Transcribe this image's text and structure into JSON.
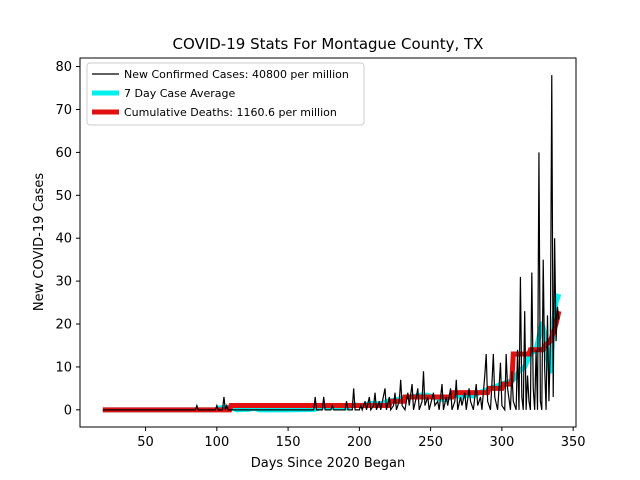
{
  "chart_data": {
    "type": "line",
    "title": "COVID-19 Stats For Montague County, TX",
    "xlabel": "Days Since 2020 Began",
    "ylabel": "New COVID-19 Cases",
    "xlim": [
      4,
      352
    ],
    "ylim": [
      -4,
      82
    ],
    "x_ticks": [
      50,
      100,
      150,
      200,
      250,
      300,
      350
    ],
    "y_ticks": [
      0,
      10,
      20,
      30,
      40,
      50,
      60,
      70,
      80
    ],
    "grid": false,
    "legend_position": "top-left",
    "colors": {
      "new_cases": "#000000",
      "avg": "#00f0f0",
      "deaths": "#e31010"
    },
    "series": [
      {
        "name": "New Confirmed Cases: 40800 per million",
        "style": "line",
        "points": [
          [
            20,
            0
          ],
          [
            85,
            0
          ],
          [
            86,
            1
          ],
          [
            87,
            0
          ],
          [
            99,
            0
          ],
          [
            100,
            1
          ],
          [
            101,
            0
          ],
          [
            104,
            0
          ],
          [
            105,
            3
          ],
          [
            106,
            0
          ],
          [
            107,
            1
          ],
          [
            108,
            0
          ],
          [
            160,
            0
          ],
          [
            168,
            0
          ],
          [
            169,
            3
          ],
          [
            170,
            0
          ],
          [
            174,
            0
          ],
          [
            175,
            3
          ],
          [
            176,
            0
          ],
          [
            180,
            0
          ],
          [
            181,
            1
          ],
          [
            182,
            0
          ],
          [
            190,
            0
          ],
          [
            191,
            2
          ],
          [
            192,
            0
          ],
          [
            195,
            0
          ],
          [
            196,
            5
          ],
          [
            197,
            0
          ],
          [
            200,
            0
          ],
          [
            201,
            1
          ],
          [
            202,
            0
          ],
          [
            204,
            2
          ],
          [
            205,
            0
          ],
          [
            207,
            3
          ],
          [
            208,
            0
          ],
          [
            210,
            1
          ],
          [
            211,
            4
          ],
          [
            212,
            0
          ],
          [
            214,
            2
          ],
          [
            215,
            0
          ],
          [
            218,
            5
          ],
          [
            219,
            0
          ],
          [
            221,
            3
          ],
          [
            222,
            0
          ],
          [
            224,
            1
          ],
          [
            225,
            4
          ],
          [
            226,
            0
          ],
          [
            228,
            2
          ],
          [
            229,
            7
          ],
          [
            230,
            1
          ],
          [
            232,
            0
          ],
          [
            234,
            4
          ],
          [
            235,
            1
          ],
          [
            237,
            6
          ],
          [
            238,
            0
          ],
          [
            240,
            3
          ],
          [
            241,
            5
          ],
          [
            242,
            0
          ],
          [
            244,
            2
          ],
          [
            245,
            9
          ],
          [
            246,
            1
          ],
          [
            248,
            3
          ],
          [
            249,
            0
          ],
          [
            252,
            4
          ],
          [
            253,
            1
          ],
          [
            255,
            2
          ],
          [
            256,
            0
          ],
          [
            258,
            6
          ],
          [
            259,
            0
          ],
          [
            261,
            3
          ],
          [
            262,
            1
          ],
          [
            264,
            5
          ],
          [
            265,
            0
          ],
          [
            267,
            2
          ],
          [
            268,
            7
          ],
          [
            269,
            0
          ],
          [
            271,
            3
          ],
          [
            272,
            1
          ],
          [
            274,
            4
          ],
          [
            275,
            0
          ],
          [
            277,
            5
          ],
          [
            278,
            2
          ],
          [
            280,
            0
          ],
          [
            282,
            6
          ],
          [
            283,
            1
          ],
          [
            285,
            3
          ],
          [
            286,
            0
          ],
          [
            288,
            8
          ],
          [
            289,
            13
          ],
          [
            290,
            2
          ],
          [
            292,
            0
          ],
          [
            293,
            6
          ],
          [
            294,
            13
          ],
          [
            295,
            3
          ],
          [
            297,
            0
          ],
          [
            298,
            5
          ],
          [
            299,
            11
          ],
          [
            300,
            1
          ],
          [
            302,
            0
          ],
          [
            303,
            13
          ],
          [
            304,
            5
          ],
          [
            306,
            0
          ],
          [
            307,
            9
          ],
          [
            308,
            2
          ],
          [
            310,
            0
          ],
          [
            311,
            14
          ],
          [
            312,
            0
          ],
          [
            313,
            31
          ],
          [
            314,
            3
          ],
          [
            315,
            0
          ],
          [
            316,
            23
          ],
          [
            317,
            0
          ],
          [
            318,
            8
          ],
          [
            319,
            2
          ],
          [
            320,
            0
          ],
          [
            321,
            32
          ],
          [
            322,
            5
          ],
          [
            323,
            0
          ],
          [
            324,
            14
          ],
          [
            325,
            0
          ],
          [
            326,
            60
          ],
          [
            327,
            2
          ],
          [
            328,
            0
          ],
          [
            329,
            35
          ],
          [
            330,
            10
          ],
          [
            331,
            0
          ],
          [
            332,
            22
          ],
          [
            333,
            2
          ],
          [
            334,
            15
          ],
          [
            335,
            78
          ],
          [
            336,
            3
          ],
          [
            337,
            40
          ],
          [
            338,
            16
          ],
          [
            339,
            24
          ],
          [
            340,
            21
          ]
        ]
      },
      {
        "name": "7 Day Case Average",
        "style": "thick-line",
        "points": [
          [
            20,
            0
          ],
          [
            100,
            0
          ],
          [
            101,
            0.4
          ],
          [
            104,
            0.5
          ],
          [
            110,
            0.6
          ],
          [
            114,
            0
          ],
          [
            118,
            0.1
          ],
          [
            122,
            0.1
          ],
          [
            126,
            0.4
          ],
          [
            130,
            0
          ],
          [
            150,
            0
          ],
          [
            168,
            0.1
          ],
          [
            172,
            0.4
          ],
          [
            176,
            0.8
          ],
          [
            180,
            0.5
          ],
          [
            186,
            0.6
          ],
          [
            190,
            0.4
          ],
          [
            196,
            1.2
          ],
          [
            200,
            1
          ],
          [
            204,
            1.1
          ],
          [
            208,
            1.5
          ],
          [
            212,
            1.4
          ],
          [
            216,
            1.5
          ],
          [
            220,
            2
          ],
          [
            224,
            2.2
          ],
          [
            228,
            2.5
          ],
          [
            232,
            3
          ],
          [
            236,
            3
          ],
          [
            240,
            3.2
          ],
          [
            244,
            3.5
          ],
          [
            248,
            3.4
          ],
          [
            252,
            3
          ],
          [
            256,
            2.6
          ],
          [
            260,
            2.3
          ],
          [
            264,
            3
          ],
          [
            268,
            3.4
          ],
          [
            272,
            3
          ],
          [
            276,
            3.5
          ],
          [
            280,
            3.2
          ],
          [
            284,
            4
          ],
          [
            288,
            4.5
          ],
          [
            292,
            5
          ],
          [
            296,
            5.5
          ],
          [
            300,
            6
          ],
          [
            304,
            6.5
          ],
          [
            308,
            7
          ],
          [
            312,
            9
          ],
          [
            316,
            10
          ],
          [
            320,
            13
          ],
          [
            324,
            14
          ],
          [
            328,
            20
          ],
          [
            330,
            18
          ],
          [
            332,
            12
          ],
          [
            334,
            9
          ],
          [
            336,
            20
          ],
          [
            338,
            25
          ],
          [
            340,
            27
          ]
        ]
      },
      {
        "name": "Cumulative Deaths: 1160.6 per million",
        "style": "step-line",
        "points": [
          [
            20,
            0
          ],
          [
            109,
            0
          ],
          [
            110,
            1
          ],
          [
            221,
            1
          ],
          [
            222,
            2
          ],
          [
            231,
            2
          ],
          [
            232,
            3
          ],
          [
            265,
            3
          ],
          [
            266,
            4
          ],
          [
            290,
            4
          ],
          [
            291,
            5
          ],
          [
            300,
            5
          ],
          [
            301,
            6
          ],
          [
            306,
            6
          ],
          [
            307,
            7
          ],
          [
            308,
            13
          ],
          [
            319,
            13
          ],
          [
            320,
            14
          ],
          [
            329,
            14
          ],
          [
            330,
            15
          ],
          [
            334,
            16
          ],
          [
            336,
            18
          ],
          [
            338,
            20
          ],
          [
            340,
            23
          ]
        ]
      }
    ]
  }
}
